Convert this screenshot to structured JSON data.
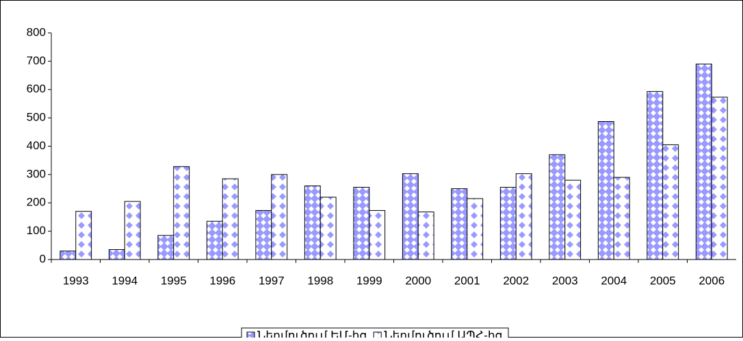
{
  "chart_data": {
    "type": "bar",
    "categories": [
      "1993",
      "1994",
      "1995",
      "1996",
      "1997",
      "1998",
      "1999",
      "2000",
      "2001",
      "2002",
      "2003",
      "2004",
      "2005",
      "2006"
    ],
    "series": [
      {
        "name": "Ներմուծում ԵՄ-ից",
        "color": "#9999ff",
        "values": [
          30,
          35,
          85,
          135,
          173,
          260,
          255,
          303,
          250,
          255,
          370,
          487,
          593,
          690
        ]
      },
      {
        "name": "Ներմուծում ԱՊՀ-ից",
        "color": "#ffffff",
        "values": [
          170,
          205,
          328,
          285,
          300,
          220,
          173,
          168,
          215,
          303,
          280,
          290,
          405,
          573
        ]
      }
    ],
    "ylim": [
      0,
      800
    ],
    "yticks": [
      0,
      100,
      200,
      300,
      400,
      500,
      600,
      700,
      800
    ],
    "grid": false,
    "legend": "bottom"
  }
}
